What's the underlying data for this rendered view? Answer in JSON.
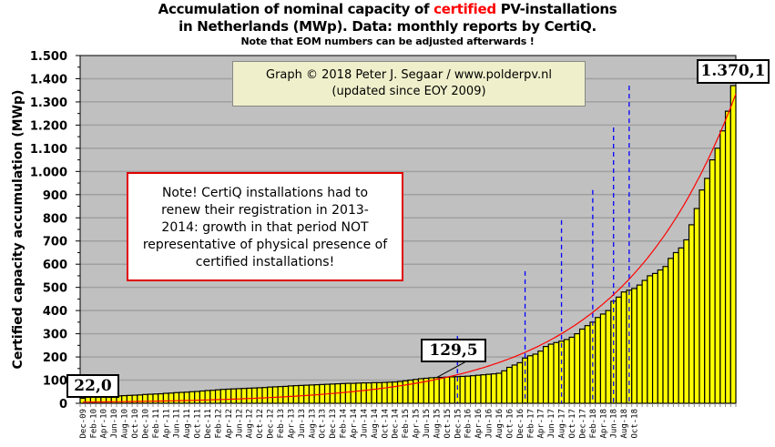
{
  "title": {
    "line1_pre": "Accumulation  of nominal  capacity of ",
    "line1_highlight": "certified",
    "line1_post": " PV-installations",
    "line2": "in Netherlands (MWp). Data: monthly  reports by CertiQ.",
    "line3": "Note that EOM numbers can be adjusted afterwards  !"
  },
  "credit_box": {
    "line1": "Graph © 2018 Peter J. Segaar / www.polderpv.nl",
    "line2": "(updated since EOY 2009)"
  },
  "note_box": {
    "text_lines": [
      "Note! CertiQ installations had to",
      "renew their registration in 2013-",
      "2014:  growth in that period NOT",
      "representative of physical presence of",
      "certified installations!"
    ]
  },
  "value_labels": {
    "first": "22,0",
    "mid": "129,5",
    "last": "1.370,1"
  },
  "colors": {
    "bar_fill": "#ffff00",
    "bar_edge": "#000000",
    "plot_bg": "#c0c0c0",
    "gridline": "#a0a0a0",
    "trend": "#ff0000",
    "dashed_marker": "#0000ff",
    "note_border": "#e00000"
  },
  "chart_data": {
    "type": "bar",
    "title": "Accumulation of nominal capacity of certified PV-installations in Netherlands (MWp). Data: monthly reports by CertiQ.",
    "subtitle": "Note that EOM numbers can be adjusted afterwards !",
    "xlabel": "",
    "ylabel": "Certified capacity accumulation (MWp)",
    "ylim": [
      0,
      1500
    ],
    "yticks": [
      0,
      100,
      200,
      300,
      400,
      500,
      600,
      700,
      800,
      900,
      1000,
      1100,
      1200,
      1300,
      1400,
      1500
    ],
    "ytick_labels": [
      "0",
      "100",
      "200",
      "300",
      "400",
      "500",
      "600",
      "700",
      "800",
      "900",
      "1.000",
      "1.100",
      "1.200",
      "1.300",
      "1.400",
      "1.500"
    ],
    "grid": true,
    "start_month": "Dec-09",
    "x_tick_labels": [
      "Dec-09",
      "Feb-10",
      "Apr-10",
      "Jun-10",
      "Aug-10",
      "Oct-10",
      "Dec-10",
      "Feb-11",
      "Apr-11",
      "Jun-11",
      "Aug-11",
      "Oct-11",
      "Dec-11",
      "Feb-12",
      "Apr-12",
      "Jun-12",
      "Aug-12",
      "Oct-12",
      "Dec-12",
      "Feb-13",
      "Apr-13",
      "Jun-13",
      "Aug-13",
      "Oct-13",
      "Dec-13",
      "Feb-14",
      "Apr-14",
      "Jun-14",
      "Aug-14",
      "Oct-14",
      "Dec-14",
      "Feb-15",
      "Apr-15",
      "Jun-15",
      "Aug-15",
      "Oct-15",
      "Dec-15",
      "Feb-16",
      "Apr-16",
      "Jun-16",
      "Aug-16",
      "Oct-16",
      "Dec-16",
      "Feb-17",
      "Apr-17",
      "Jun-17",
      "Aug-17",
      "Oct-17",
      "Dec-17",
      "Feb-18",
      "Apr-18",
      "Jun-18",
      "Aug-18",
      "Oct-18"
    ],
    "series": [
      {
        "name": "Certified capacity (MWp)",
        "type": "bar",
        "values": [
          22.0,
          26,
          27,
          27,
          28,
          29,
          30,
          32,
          33,
          34,
          35,
          36,
          38,
          39,
          40,
          41,
          43,
          44,
          46,
          47,
          48,
          50,
          51,
          53,
          55,
          56,
          58,
          60,
          61,
          62,
          63,
          64,
          65,
          66,
          67,
          68,
          70,
          71,
          72,
          73,
          75,
          76,
          77,
          78,
          79,
          80,
          81,
          82,
          83,
          84,
          85,
          86,
          86,
          87,
          88,
          88,
          89,
          89,
          90,
          91,
          92,
          94,
          97,
          100,
          103,
          106,
          108,
          110,
          111,
          112,
          113,
          114,
          115,
          116,
          117,
          119,
          121,
          123,
          125,
          127,
          129.5,
          140,
          155,
          165,
          175,
          195,
          205,
          212,
          225,
          245,
          255,
          262,
          268,
          275,
          285,
          300,
          320,
          335,
          350,
          370,
          385,
          400,
          440,
          458,
          480,
          488,
          495,
          510,
          530,
          550,
          560,
          575,
          590,
          625,
          650,
          670,
          705,
          770,
          840,
          920,
          970,
          1050,
          1100,
          1175,
          1260,
          1370.1
        ]
      },
      {
        "name": "Trend (exponential fit)",
        "type": "line",
        "color": "#ff0000",
        "start_value": 5,
        "end_value": 1305
      }
    ],
    "annotations": [
      {
        "month": "Dec-09",
        "text": "22,0"
      },
      {
        "month": "Aug-15",
        "text": "129,5"
      },
      {
        "month": "Oct-18",
        "text": "1.370,1"
      }
    ],
    "dashed_markers": [
      {
        "month": "Dec-15",
        "top_value": 290
      },
      {
        "month": "Jan-17",
        "top_value": 570
      },
      {
        "month": "Aug-17",
        "top_value": 790
      },
      {
        "month": "Feb-18",
        "top_value": 920
      },
      {
        "month": "Jun-18",
        "top_value": 1190
      },
      {
        "month": "Sep-18",
        "top_value": 1370
      }
    ]
  }
}
